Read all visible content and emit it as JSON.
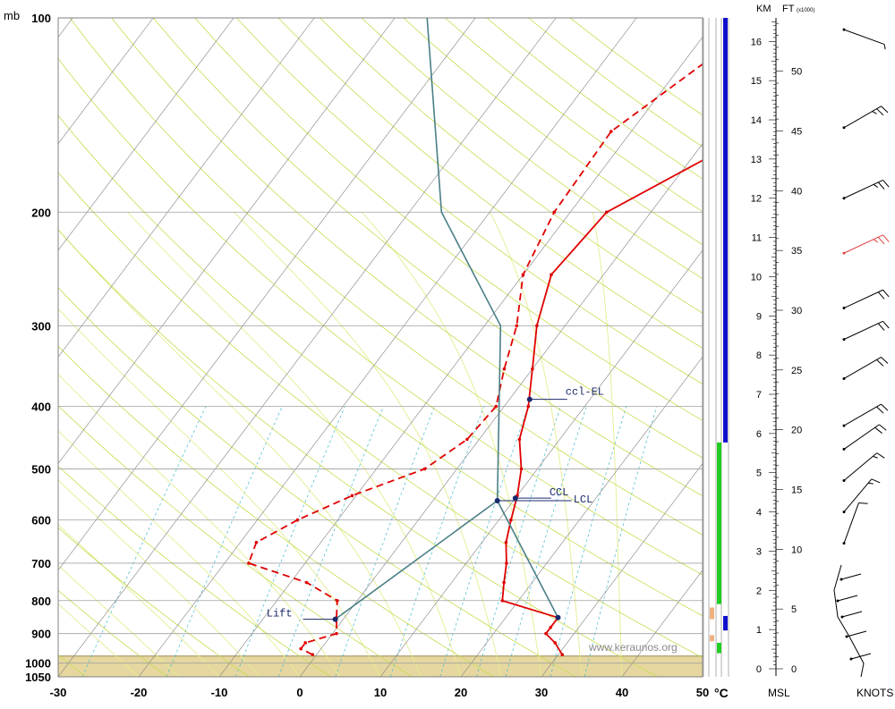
{
  "chart_data": {
    "type": "line",
    "title": "",
    "xlabel": "°C",
    "ylabel": "mb",
    "x_ticks": [
      "-30",
      "-20",
      "-10",
      "0",
      "10",
      "20",
      "30",
      "40",
      "50"
    ],
    "xlim": [
      -30,
      50
    ],
    "y_scale": "log",
    "ylim": [
      1050,
      100
    ],
    "pressure_ticks": [
      "100",
      "200",
      "300",
      "400",
      "500",
      "600",
      "700",
      "800",
      "900",
      "1000",
      "1050"
    ],
    "grid": true,
    "series": [
      {
        "role": "temperature",
        "color": "#e00000",
        "style": "solid",
        "points": [
          {
            "p": 970,
            "t": 30.5
          },
          {
            "p": 930,
            "t": 28.5
          },
          {
            "p": 900,
            "t": 26.5
          },
          {
            "p": 880,
            "t": 26.5
          },
          {
            "p": 850,
            "t": 26.5
          },
          {
            "p": 800,
            "t": 18
          },
          {
            "p": 750,
            "t": 16.5
          },
          {
            "p": 700,
            "t": 15
          },
          {
            "p": 650,
            "t": 13
          },
          {
            "p": 600,
            "t": 11.5
          },
          {
            "p": 550,
            "t": 10
          },
          {
            "p": 500,
            "t": 8
          },
          {
            "p": 450,
            "t": 5
          },
          {
            "p": 400,
            "t": 3
          },
          {
            "p": 350,
            "t": 0
          },
          {
            "p": 300,
            "t": -3.5
          },
          {
            "p": 250,
            "t": -6.5
          },
          {
            "p": 200,
            "t": -5.5
          },
          {
            "p": 150,
            "t": 5.5
          },
          {
            "p": 100,
            "t": 21
          }
        ]
      },
      {
        "role": "dewpoint",
        "color": "#e00000",
        "style": "dashed",
        "points": [
          {
            "p": 970,
            "t": -0.5
          },
          {
            "p": 950,
            "t": -2.5
          },
          {
            "p": 930,
            "t": -2.5
          },
          {
            "p": 900,
            "t": 0.5
          },
          {
            "p": 850,
            "t": -1
          },
          {
            "p": 800,
            "t": -2.5
          },
          {
            "p": 750,
            "t": -8
          },
          {
            "p": 700,
            "t": -17
          },
          {
            "p": 650,
            "t": -18
          },
          {
            "p": 600,
            "t": -15
          },
          {
            "p": 550,
            "t": -10.5
          },
          {
            "p": 500,
            "t": -4
          },
          {
            "p": 450,
            "t": -1.5
          },
          {
            "p": 400,
            "t": -1
          },
          {
            "p": 350,
            "t": -3.5
          },
          {
            "p": 300,
            "t": -6
          },
          {
            "p": 250,
            "t": -10
          },
          {
            "p": 200,
            "t": -12
          },
          {
            "p": 150,
            "t": -12.5
          },
          {
            "p": 100,
            "t": -4
          }
        ]
      },
      {
        "role": "parcel",
        "color": "#4a7f86",
        "style": "solid",
        "points": [
          {
            "p": 850,
            "t": 26.5
          },
          {
            "p": 560,
            "t": 8
          },
          {
            "p": 300,
            "t": -8
          },
          {
            "p": 200,
            "t": -26
          },
          {
            "p": 100,
            "t": -46
          }
        ]
      },
      {
        "role": "lift-path",
        "color": "#4a7f86",
        "style": "solid",
        "points": [
          {
            "p": 855,
            "t": -1
          },
          {
            "p": 560,
            "t": 8
          }
        ]
      }
    ],
    "markers": [
      {
        "label": "ccl-EL",
        "p": 390,
        "t": 2.5
      },
      {
        "label": "CCL",
        "p": 555,
        "t": 10
      },
      {
        "label": "LCL",
        "p": 560,
        "t": 8
      },
      {
        "label": "Lift",
        "p": 855,
        "t": -1
      },
      {
        "label": "",
        "p": 850,
        "t": 26.5
      }
    ],
    "surface": {
      "label": "ground",
      "p": 975
    },
    "height_scale": {
      "km_label": "KM",
      "ft_label": "FT",
      "ft_multiplier": "(x1000)",
      "km_ticks": [
        "0",
        "1",
        "2",
        "3",
        "4",
        "5",
        "6",
        "7",
        "8",
        "9",
        "10",
        "11",
        "12",
        "13",
        "14",
        "15",
        "16"
      ],
      "ft_ticks": [
        "0",
        "5",
        "10",
        "15",
        "20",
        "25",
        "30",
        "35",
        "40",
        "45",
        "50"
      ],
      "bottom_label": "MSL"
    },
    "wind": {
      "units_label": "KNOTS",
      "barbs": [
        {
          "km": 16.3,
          "dir": 290,
          "speed": 5
        },
        {
          "km": 13.8,
          "dir": 240,
          "speed": 25
        },
        {
          "km": 12.0,
          "dir": 245,
          "speed": 25
        },
        {
          "km": 10.6,
          "dir": 245,
          "speed": 25,
          "color": "#e04040"
        },
        {
          "km": 9.2,
          "dir": 245,
          "speed": 20
        },
        {
          "km": 8.4,
          "dir": 245,
          "speed": 20
        },
        {
          "km": 7.4,
          "dir": 240,
          "speed": 20
        },
        {
          "km": 6.2,
          "dir": 240,
          "speed": 20
        },
        {
          "km": 5.6,
          "dir": 235,
          "speed": 20
        },
        {
          "km": 4.8,
          "dir": 230,
          "speed": 15
        },
        {
          "km": 4.0,
          "dir": 220,
          "speed": 15
        },
        {
          "km": 3.2,
          "dir": 200,
          "speed": 10
        }
      ]
    },
    "indicator_bars": [
      {
        "color": "#1010cc",
        "from_p": 100,
        "to_p": 455
      },
      {
        "color": "#22cc22",
        "from_p": 455,
        "to_p": 810
      },
      {
        "color": "#1010cc",
        "from_p": 845,
        "to_p": 890
      },
      {
        "color": "#22cc22",
        "from_p": 930,
        "to_p": 965
      },
      {
        "color": "#f0b080",
        "from_p": 820,
        "to_p": 855
      },
      {
        "color": "#f0b080",
        "from_p": 905,
        "to_p": 925
      }
    ],
    "watermark": "www.keraunos.org",
    "colors": {
      "isotherm": "#808080",
      "isobar": "#a0a0a0",
      "dry_adiabat": "#c8dc50",
      "moist_adiabat": "#e6ec90",
      "mixing_ratio": "#40b8d0",
      "ground": "#e6d7a0"
    }
  }
}
